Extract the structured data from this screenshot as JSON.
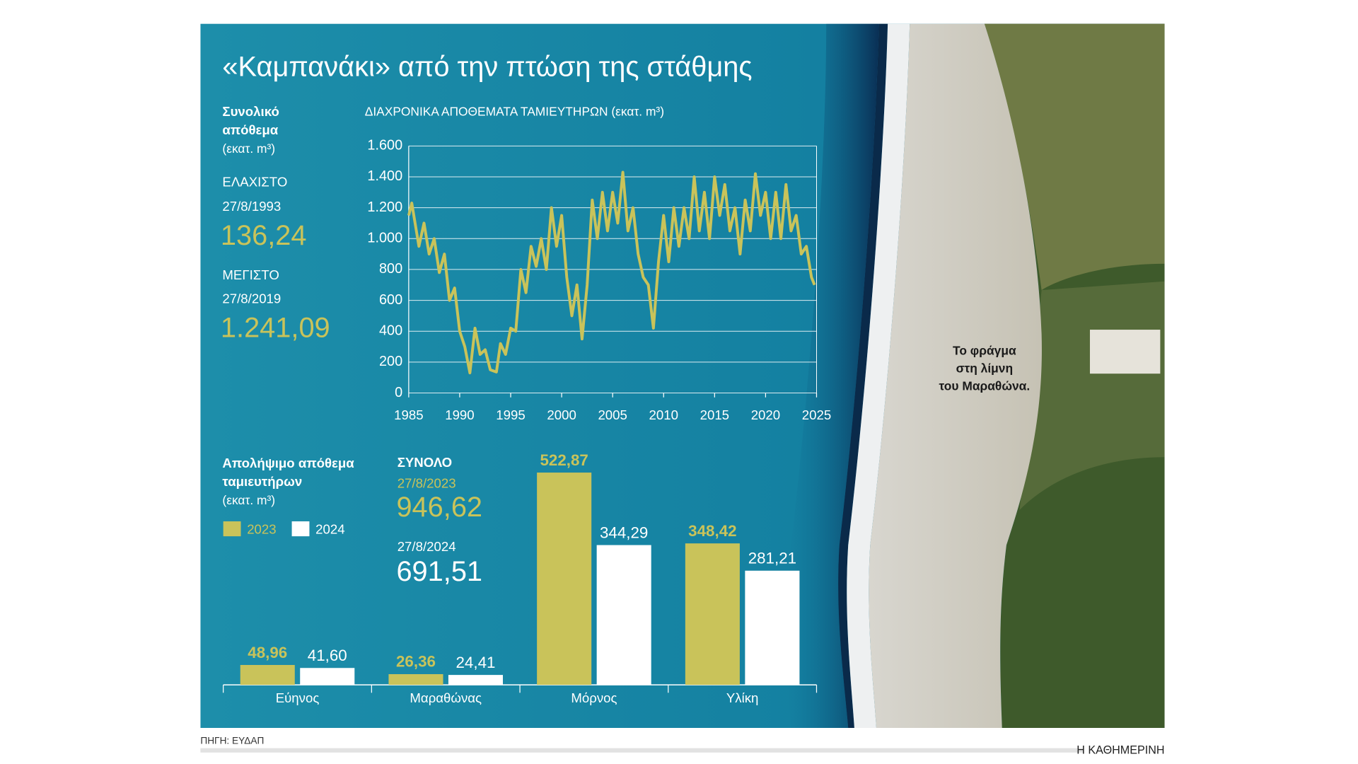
{
  "title": "«Καμπανάκι» από την πτώση της στάθμης",
  "sidebar": {
    "heading": [
      "Συνολικό",
      "απόθεμα"
    ],
    "unit": "(εκατ. m³)",
    "min_label": "ΕΛΑΧΙΣΤΟ",
    "min_date": "27/8/1993",
    "min_value": "136,24",
    "max_label": "ΜΕΓΙΣΤΟ",
    "max_date": "27/8/2019",
    "max_value": "1.241,09"
  },
  "totals": {
    "label": "ΣΥΝΟΛΟ",
    "date_2023": "27/8/2023",
    "value_2023": "946,62",
    "date_2024": "27/8/2024",
    "value_2024": "691,51"
  },
  "caption": [
    "Το φράγμα",
    "στη λίμνη",
    "του Μαραθώνα."
  ],
  "source": "ΠΗΓΗ: ΕΥΔΑΠ",
  "credit": "Η ΚΑΘΗΜΕΡΙΝΗ",
  "chart_data": [
    {
      "type": "line",
      "title": "ΔΙΑΧΡΟΝΙΚΑ ΑΠΟΘΕΜΑΤΑ ΤΑΜΙΕΥΤΗΡΩΝ (εκατ. m³)",
      "color": "#c9c35a",
      "x": [
        1985,
        1985.3,
        1986,
        1986.5,
        1987,
        1987.5,
        1988,
        1988.5,
        1989,
        1989.5,
        1990,
        1990.5,
        1991,
        1991.5,
        1992,
        1992.5,
        1993,
        1993.6,
        1994,
        1994.5,
        1995,
        1995.5,
        1996,
        1996.5,
        1997,
        1997.5,
        1998,
        1998.5,
        1999,
        1999.5,
        2000,
        2000.5,
        2001,
        2001.5,
        2002,
        2002.5,
        2003,
        2003.5,
        2004,
        2004.5,
        2005,
        2005.5,
        2006,
        2006.5,
        2007,
        2007.5,
        2008,
        2008.5,
        2009,
        2009.5,
        2010,
        2010.5,
        2011,
        2011.5,
        2012,
        2012.5,
        2013,
        2013.5,
        2014,
        2014.5,
        2015,
        2015.5,
        2016,
        2016.5,
        2017,
        2017.5,
        2018,
        2018.5,
        2019,
        2019.5,
        2020,
        2020.5,
        2021,
        2021.5,
        2022,
        2022.5,
        2023,
        2023.5,
        2024,
        2024.5,
        2024.8
      ],
      "values": [
        1150,
        1230,
        950,
        1100,
        900,
        1000,
        780,
        900,
        600,
        680,
        400,
        300,
        130,
        420,
        250,
        280,
        150,
        136,
        320,
        250,
        420,
        400,
        800,
        650,
        950,
        820,
        1000,
        800,
        1200,
        950,
        1150,
        750,
        500,
        700,
        350,
        700,
        1250,
        1000,
        1300,
        1050,
        1300,
        1100,
        1430,
        1050,
        1200,
        900,
        750,
        700,
        420,
        850,
        1150,
        850,
        1200,
        950,
        1200,
        1000,
        1400,
        1050,
        1300,
        1000,
        1400,
        1150,
        1350,
        1050,
        1200,
        900,
        1250,
        1050,
        1420,
        1150,
        1300,
        1000,
        1300,
        1000,
        1350,
        1050,
        1150,
        900,
        950,
        750,
        700
      ],
      "xlim": [
        1985,
        2025
      ],
      "xticks": [
        1985,
        1990,
        1995,
        2000,
        2005,
        2010,
        2015,
        2020,
        2025
      ],
      "ylim": [
        0,
        1600
      ],
      "yticks": [
        0,
        200,
        400,
        600,
        800,
        {
          "value": 1000,
          "label": "1.000"
        },
        {
          "value": 1200,
          "label": "1.200"
        },
        {
          "value": 1400,
          "label": "1.400"
        },
        {
          "value": 1600,
          "label": "1.600"
        }
      ],
      "grid": true
    },
    {
      "type": "bar",
      "title": [
        "Απολήψιμο απόθεμα",
        "ταμιευτήρων"
      ],
      "unit": "(εκατ. m³)",
      "categories": [
        "Εύηνος",
        "Μαραθώνας",
        "Μόρνος",
        "Υλίκη"
      ],
      "series": [
        {
          "name": "2023",
          "color": "#c9c35a",
          "values": [
            48.96,
            26.36,
            522.87,
            348.42
          ],
          "value_labels": [
            "48,96",
            "26,36",
            "522,87",
            "348,42"
          ]
        },
        {
          "name": "2024",
          "color": "#ffffff",
          "values": [
            41.6,
            24.41,
            344.29,
            281.21
          ],
          "value_labels": [
            "41,60",
            "24,41",
            "344,29",
            "281,21"
          ]
        }
      ],
      "ylim": [
        0,
        550
      ]
    }
  ]
}
